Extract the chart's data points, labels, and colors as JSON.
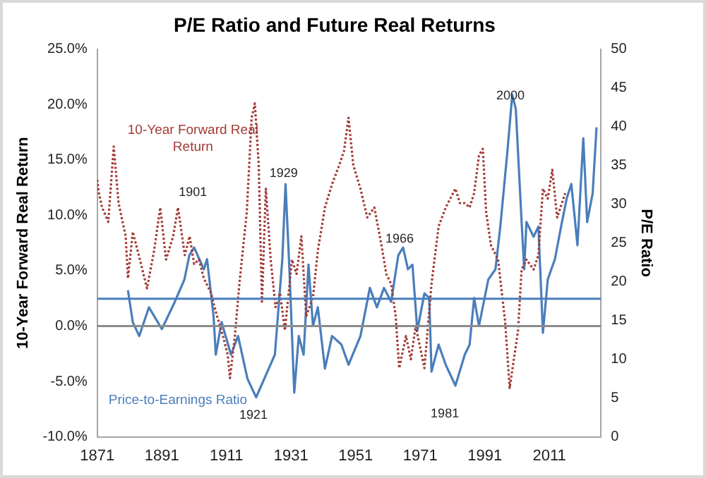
{
  "chart_data": {
    "type": "line",
    "title": "P/E Ratio and Future Real Returns",
    "ylabel": "10-Year Forward Real Return",
    "y2label": "P/E Ratio",
    "xlim": [
      1871,
      2027
    ],
    "xticks": [
      1871,
      1891,
      1911,
      1931,
      1951,
      1971,
      1991,
      2011
    ],
    "ylim": [
      -10,
      25
    ],
    "yticks": [
      {
        "value": -10,
        "label": "-10.0%"
      },
      {
        "value": -5,
        "label": "-5.0%"
      },
      {
        "value": 0,
        "label": "0.0%"
      },
      {
        "value": 5,
        "label": "5.0%"
      },
      {
        "value": 10,
        "label": "10.0%"
      },
      {
        "value": 15,
        "label": "15.0%"
      },
      {
        "value": 20,
        "label": "20.0%"
      },
      {
        "value": 25,
        "label": "25.0%"
      }
    ],
    "y2lim": [
      0,
      50
    ],
    "y2ticks": [
      0,
      5,
      10,
      15,
      20,
      25,
      30,
      35,
      40,
      45,
      50
    ],
    "grid": false,
    "legend": false,
    "marker": "none",
    "series": [
      {
        "name": "10-Year Forward Real Return",
        "color": "#a33a36",
        "line_style": "dotted",
        "axis": "y",
        "x": [
          1871,
          1871.5,
          1872.5,
          1874.4,
          1876.1,
          1877.6,
          1879.8,
          1880.5,
          1882,
          1884.2,
          1886.4,
          1888.6,
          1890.5,
          1892.3,
          1894.5,
          1896,
          1898.1,
          1899.6,
          1901,
          1902.5,
          1904,
          1906.2,
          1907.7,
          1909.9,
          1911.4,
          1912.1,
          1913.6,
          1915,
          1917.3,
          1918.8,
          1919.8,
          1921,
          1922,
          1923.2,
          1924.7,
          1926.2,
          1927.6,
          1929.1,
          1931.3,
          1932.7,
          1934.2,
          1935.7,
          1937.8,
          1939.3,
          1941.5,
          1943.7,
          1945.9,
          1947.4,
          1948.8,
          1950.3,
          1952.5,
          1954.6,
          1956.8,
          1959,
          1960.5,
          1962,
          1963.4,
          1964.5,
          1966.6,
          1968.1,
          1969.6,
          1972.3,
          1974.5,
          1976.7,
          1978.9,
          1981.9,
          1983.3,
          1984.8,
          1986.3,
          1987.7,
          1989.2,
          1990.4,
          1991.4,
          1992.9,
          1995.1,
          1997.3,
          1998.7,
          2000.2,
          2001.3,
          2002.4,
          2003.9,
          2006.1,
          2007.6,
          2009,
          2010.5,
          2011.9,
          2013.4,
          2014.9,
          2015.9
        ],
        "values": [
          13.2,
          12.0,
          10.7,
          9.4,
          16.2,
          11.1,
          8.1,
          4.3,
          8.5,
          6.0,
          3.4,
          6.8,
          10.7,
          6.0,
          8.1,
          10.7,
          6.4,
          8.1,
          5.6,
          6.0,
          4.3,
          3.0,
          1.3,
          -0.9,
          -2.6,
          -4.7,
          -0.9,
          3.8,
          10.3,
          18.8,
          20.1,
          14.5,
          2.2,
          12.4,
          6.0,
          1.7,
          3.0,
          -0.4,
          6.0,
          4.7,
          8.1,
          0.9,
          2.6,
          6.8,
          10.7,
          12.8,
          14.5,
          15.8,
          18.8,
          14.5,
          12.4,
          9.8,
          10.7,
          7.3,
          4.7,
          3.8,
          0.9,
          -3.8,
          -0.9,
          -3.0,
          0,
          -3.8,
          3.8,
          9.0,
          10.7,
          12.4,
          11.1,
          11.1,
          10.7,
          12.0,
          15.4,
          16.0,
          10.3,
          7.3,
          6.0,
          0.4,
          -5.6,
          -2.6,
          -0.4,
          5.1,
          6.0,
          5.1,
          6.4,
          12.4,
          11.5,
          14.1,
          9.8,
          11.1,
          12.0
        ]
      },
      {
        "name": "Price-to-Earnings Ratio",
        "color": "#4a7ebb",
        "line_style": "solid",
        "axis": "y2",
        "x": [
          1880.5,
          1882,
          1884,
          1887,
          1891,
          1895,
          1898,
          1899.5,
          1901,
          1904,
          1905,
          1907,
          1907.7,
          1909.5,
          1912.4,
          1914.6,
          1917.5,
          1920.2,
          1926,
          1928.3,
          1929.3,
          1930.5,
          1932,
          1933.4,
          1934.9,
          1936.4,
          1937.8,
          1939.3,
          1941.5,
          1943.7,
          1946.6,
          1948.8,
          1952.5,
          1955.4,
          1957.6,
          1959.8,
          1962,
          1964.2,
          1965.7,
          1967.2,
          1968.6,
          1970.1,
          1972.3,
          1973.8,
          1974.5,
          1976.7,
          1978.9,
          1981.9,
          1984.8,
          1986.3,
          1987.7,
          1989.2,
          1992.1,
          1994.3,
          1995.8,
          1998,
          1999.5,
          2000.6,
          2002.4,
          2003.2,
          2003.9,
          2006.1,
          2007.6,
          2009,
          2010.5,
          2012.7,
          2014.9,
          2016.4,
          2017.8,
          2019.7,
          2021.5,
          2022.7,
          2024.4,
          2025.6
        ],
        "values": [
          18.9,
          14.8,
          13.0,
          16.7,
          13.9,
          17.4,
          20.3,
          23.4,
          24.4,
          21.6,
          22.9,
          15.6,
          10.6,
          14.8,
          10.6,
          13.0,
          7.5,
          5.1,
          10.6,
          22.9,
          32.6,
          21.6,
          5.7,
          13.0,
          10.6,
          22.2,
          14.3,
          16.7,
          8.8,
          13.0,
          11.9,
          9.3,
          13.0,
          19.2,
          16.7,
          19.2,
          17.4,
          23.4,
          24.4,
          21.6,
          22.2,
          13.7,
          18.5,
          17.9,
          8.4,
          11.9,
          9.3,
          6.6,
          10.6,
          11.9,
          17.9,
          14.3,
          20.3,
          21.6,
          27.1,
          36.8,
          44.1,
          42.3,
          27.7,
          21.6,
          27.7,
          25.8,
          27.1,
          13.4,
          20.3,
          22.9,
          27.7,
          30.8,
          32.6,
          24.7,
          38.5,
          27.7,
          31.4,
          39.9
        ]
      }
    ],
    "ref_lines": [
      {
        "axis": "y",
        "value": 0,
        "color": "#8c8c8c"
      },
      {
        "axis": "y2",
        "value": 17.8,
        "color": "#4a7ebb"
      }
    ],
    "annotations": [
      "1901",
      "1929",
      "1921",
      "1966",
      "1981",
      "2000"
    ]
  }
}
